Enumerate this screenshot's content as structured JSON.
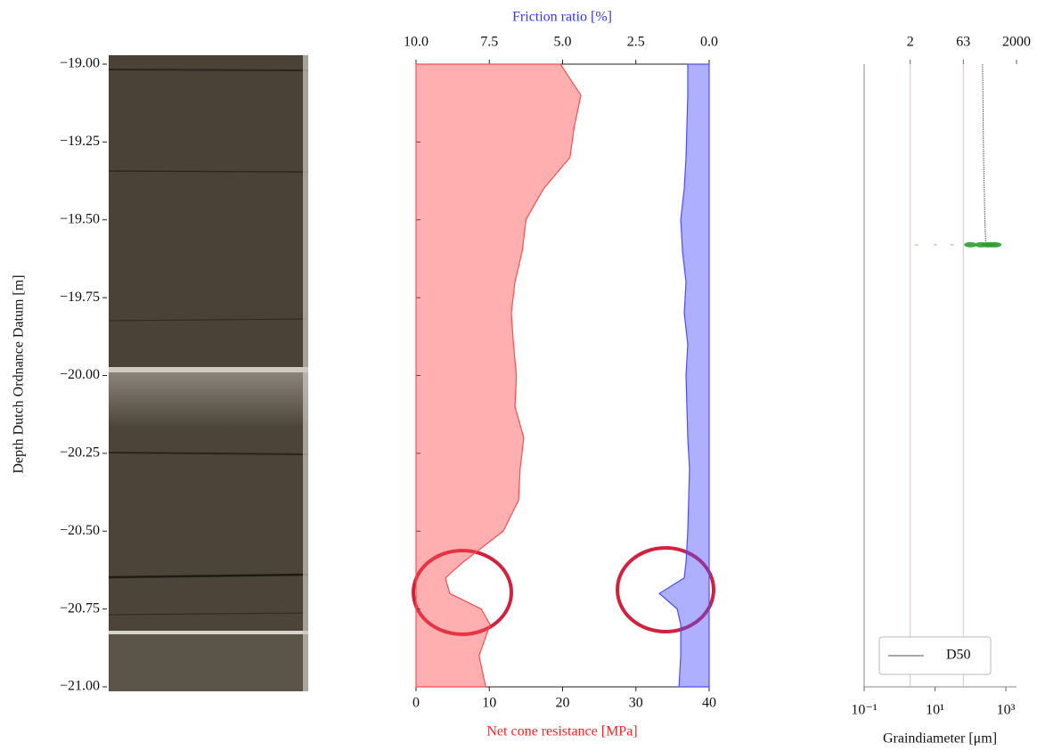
{
  "chart_data": [
    {
      "type": "image",
      "ylabel": "Depth Dutch Ordnance Datum [m]",
      "ylim": [
        -19,
        -21
      ],
      "yticks": [
        {
          "value": -19,
          "label": "−19.00"
        },
        {
          "value": -19.25,
          "label": "−19.25"
        },
        {
          "value": -19.5,
          "label": "−19.50"
        },
        {
          "value": -19.75,
          "label": "−19.75"
        },
        {
          "value": -20,
          "label": "−20.00"
        },
        {
          "value": -20.25,
          "label": "−20.25"
        },
        {
          "value": -20.5,
          "label": "−20.50"
        },
        {
          "value": -20.75,
          "label": "−20.75"
        },
        {
          "value": -21,
          "label": "−21.00"
        }
      ]
    },
    {
      "type": "area",
      "xlabel": "Net cone resistance [MPa]",
      "x2label": "Friction ratio [%]",
      "xlim": [
        0,
        40
      ],
      "xticks": [
        0,
        10,
        20,
        30,
        40
      ],
      "x2lim": [
        10,
        0
      ],
      "x2ticks": [
        {
          "value": 10,
          "label": "10.0"
        },
        7.5,
        {
          "value": 5,
          "label": "5.0"
        },
        2.5,
        {
          "value": 0,
          "label": "0.0"
        }
      ],
      "ylim": [
        -19,
        -21
      ],
      "y": [
        -19,
        -19.1,
        -19.2,
        -19.3,
        -19.4,
        -19.5,
        -19.6,
        -19.7,
        -19.8,
        -19.9,
        -20,
        -20.1,
        -20.2,
        -20.3,
        -20.4,
        -20.5,
        -20.6,
        -20.65,
        -20.7,
        -20.75,
        -20.8,
        -20.9,
        -21
      ],
      "series": [
        {
          "color": "#ff4d4d",
          "values": [
            19.7,
            22.5,
            21.6,
            21.0,
            17.4,
            15.0,
            14.5,
            13.5,
            13.0,
            13.3,
            13.7,
            13.5,
            14.7,
            14.2,
            14.0,
            11.9,
            6.4,
            4.0,
            4.6,
            8.9,
            10.1,
            8.6,
            9.5
          ]
        },
        {
          "color": "#4d4dff",
          "axis": "x2",
          "values": [
            0.73,
            0.73,
            0.76,
            0.79,
            0.85,
            0.97,
            0.91,
            0.79,
            0.85,
            0.73,
            0.79,
            0.76,
            0.73,
            0.67,
            0.7,
            0.73,
            0.79,
            0.85,
            1.7,
            1.09,
            0.97,
            0.97,
            1.03
          ]
        }
      ]
    },
    {
      "type": "line",
      "xscale": "log",
      "xlabel": "Graindiameter [μm]",
      "xlim": [
        0.1,
        2000
      ],
      "xticks": [
        {
          "value": 0.1,
          "label": "10⁻¹"
        },
        {
          "value": 10,
          "label": "10¹"
        },
        {
          "value": 1000,
          "label": "10³"
        }
      ],
      "x2ticks": [
        2,
        63,
        2000
      ],
      "ylim": [
        -19,
        -21
      ],
      "legend": "lower right",
      "series": [
        {
          "name": "D50",
          "color": "#555555",
          "y": [
            -19,
            -19.1,
            -19.2,
            -19.3,
            -19.4,
            -19.5,
            -19.57
          ],
          "values": [
            220,
            225,
            230,
            235,
            245,
            255,
            270
          ]
        },
        {
          "color": "#2ca02c",
          "y": [
            -19.58,
            -19.58,
            -19.58,
            -19.58,
            -19.58,
            -19.58,
            -19.58,
            -19.58
          ],
          "values": [
            3,
            10,
            30,
            100,
            200,
            300,
            400,
            500
          ]
        }
      ]
    }
  ]
}
